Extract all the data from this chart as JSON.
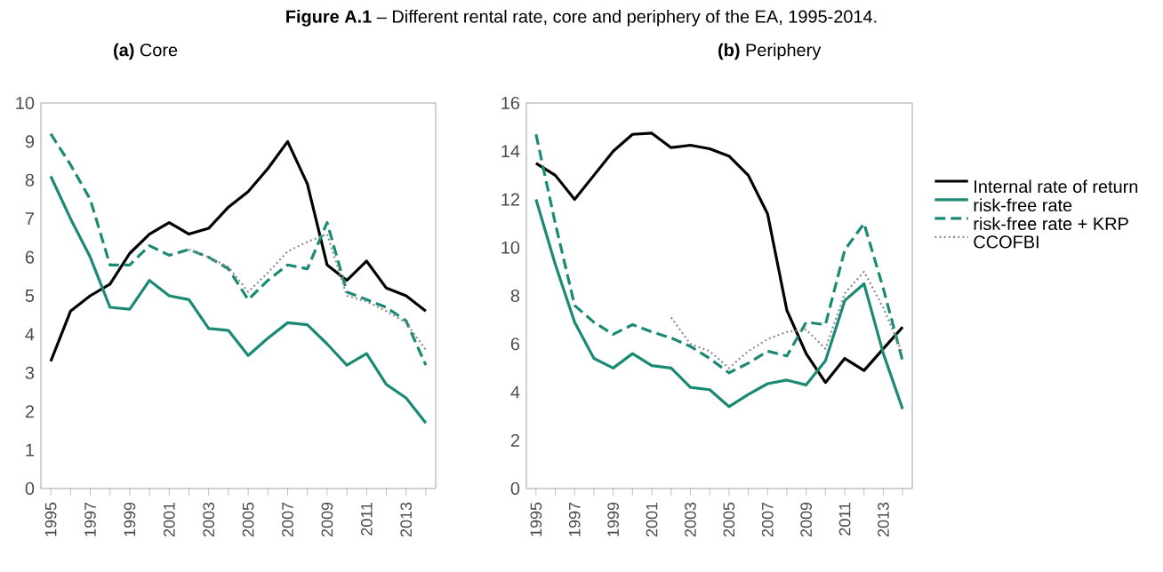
{
  "chart_data": [
    {
      "type": "line",
      "title": "**Figure A.1** – Different rental rate, core and periphery of the EA, 1995-2014.",
      "subtitle": "**(a)** Core",
      "x": [
        1995,
        1996,
        1997,
        1998,
        1999,
        2000,
        2001,
        2002,
        2003,
        2004,
        2005,
        2006,
        2007,
        2008,
        2009,
        2010,
        2011,
        2012,
        2013,
        2014
      ],
      "xlim": [
        1994.5,
        2014.5
      ],
      "xticks": [
        1995,
        {
          "value": 1996,
          "label": null
        },
        1997,
        {
          "value": 1998,
          "label": null
        },
        1999,
        {
          "value": 2000,
          "label": null
        },
        2001,
        {
          "value": 2002,
          "label": null
        },
        2003,
        {
          "value": 2004,
          "label": null
        },
        2005,
        {
          "value": 2006,
          "label": null
        },
        2007,
        {
          "value": 2008,
          "label": null
        },
        2009,
        {
          "value": 2010,
          "label": null
        },
        2011,
        {
          "value": 2012,
          "label": null
        },
        2013,
        {
          "value": 2014,
          "label": null
        }
      ],
      "ylim": [
        0,
        10
      ],
      "yticks": [
        0,
        1,
        2,
        3,
        4,
        5,
        6,
        7,
        8,
        9,
        10
      ],
      "grid": false,
      "marker": "none",
      "series": [
        {
          "color": "#000000",
          "line_style": "solid",
          "values": [
            3.3,
            4.6,
            5.0,
            5.3,
            6.1,
            6.6,
            6.9,
            6.6,
            6.75,
            7.3,
            7.7,
            8.3,
            9.0,
            7.9,
            5.8,
            5.4,
            5.9,
            5.2,
            5.0,
            4.6
          ]
        },
        {
          "color": "#1a8a74",
          "line_style": "solid",
          "values": [
            8.1,
            7.0,
            6.0,
            4.7,
            4.65,
            5.4,
            5.0,
            4.9,
            4.15,
            4.1,
            3.45,
            3.9,
            4.3,
            4.25,
            3.75,
            3.2,
            3.5,
            2.7,
            2.35,
            1.7
          ]
        },
        {
          "color": "#1a8a74",
          "line_style": "dashed",
          "values": [
            9.2,
            8.4,
            7.5,
            5.8,
            5.8,
            6.3,
            6.05,
            6.2,
            6.0,
            5.7,
            4.9,
            5.4,
            5.8,
            5.7,
            6.9,
            5.1,
            4.9,
            4.7,
            4.35,
            3.2
          ]
        },
        {
          "color": "#8c8c8c",
          "line_style": "dotted",
          "x": [
            2002,
            2003,
            2004,
            2005,
            2006,
            2007,
            2008,
            2009,
            2010,
            2011,
            2012,
            2013,
            2014
          ],
          "values": [
            6.2,
            6.0,
            5.75,
            5.1,
            5.6,
            6.15,
            6.4,
            6.6,
            5.0,
            4.85,
            4.6,
            4.3,
            3.6
          ]
        }
      ]
    },
    {
      "type": "line",
      "subtitle": "**(b)** Periphery",
      "x": [
        1995,
        1996,
        1997,
        1998,
        1999,
        2000,
        2001,
        2002,
        2003,
        2004,
        2005,
        2006,
        2007,
        2008,
        2009,
        2010,
        2011,
        2012,
        2013,
        2014
      ],
      "xlim": [
        1994.5,
        2014.5
      ],
      "xticks": [
        1995,
        {
          "value": 1996,
          "label": null
        },
        1997,
        {
          "value": 1998,
          "label": null
        },
        1999,
        {
          "value": 2000,
          "label": null
        },
        2001,
        {
          "value": 2002,
          "label": null
        },
        2003,
        {
          "value": 2004,
          "label": null
        },
        2005,
        {
          "value": 2006,
          "label": null
        },
        2007,
        {
          "value": 2008,
          "label": null
        },
        2009,
        {
          "value": 2010,
          "label": null
        },
        2011,
        {
          "value": 2012,
          "label": null
        },
        2013,
        {
          "value": 2014,
          "label": null
        }
      ],
      "ylim": [
        0,
        16
      ],
      "yticks": [
        0,
        2,
        4,
        6,
        8,
        10,
        12,
        14,
        16
      ],
      "grid": false,
      "marker": "none",
      "legend": "right",
      "series": [
        {
          "name": "Internal rate of return",
          "color": "#000000",
          "line_style": "solid",
          "values": [
            13.5,
            13.0,
            12.0,
            13.0,
            14.0,
            14.7,
            14.75,
            14.15,
            14.25,
            14.1,
            13.8,
            13.0,
            11.4,
            7.4,
            5.6,
            4.4,
            5.4,
            4.9,
            5.8,
            6.7
          ]
        },
        {
          "name": "risk-free rate",
          "color": "#1a8a74",
          "line_style": "solid",
          "values": [
            12.0,
            9.3,
            6.9,
            5.4,
            5.0,
            5.6,
            5.1,
            5.0,
            4.2,
            4.1,
            3.4,
            3.9,
            4.35,
            4.5,
            4.3,
            5.3,
            7.8,
            8.5,
            5.6,
            3.3
          ]
        },
        {
          "name": "risk-free rate + KRP",
          "color": "#1a8a74",
          "line_style": "dashed",
          "values": [
            14.7,
            11.0,
            7.6,
            6.9,
            6.4,
            6.8,
            6.5,
            6.25,
            5.9,
            5.4,
            4.8,
            5.2,
            5.7,
            5.5,
            6.9,
            6.8,
            9.9,
            11.0,
            8.3,
            5.3
          ]
        },
        {
          "name": "CCOFBI",
          "color": "#8c8c8c",
          "line_style": "dotted",
          "x": [
            2002,
            2003,
            2004,
            2005,
            2006,
            2007,
            2008,
            2009,
            2010,
            2011,
            2012,
            2013,
            2014
          ],
          "values": [
            7.1,
            6.0,
            5.7,
            5.0,
            5.7,
            6.2,
            6.5,
            6.6,
            5.8,
            8.1,
            9.0,
            7.5,
            5.6
          ]
        }
      ]
    }
  ]
}
